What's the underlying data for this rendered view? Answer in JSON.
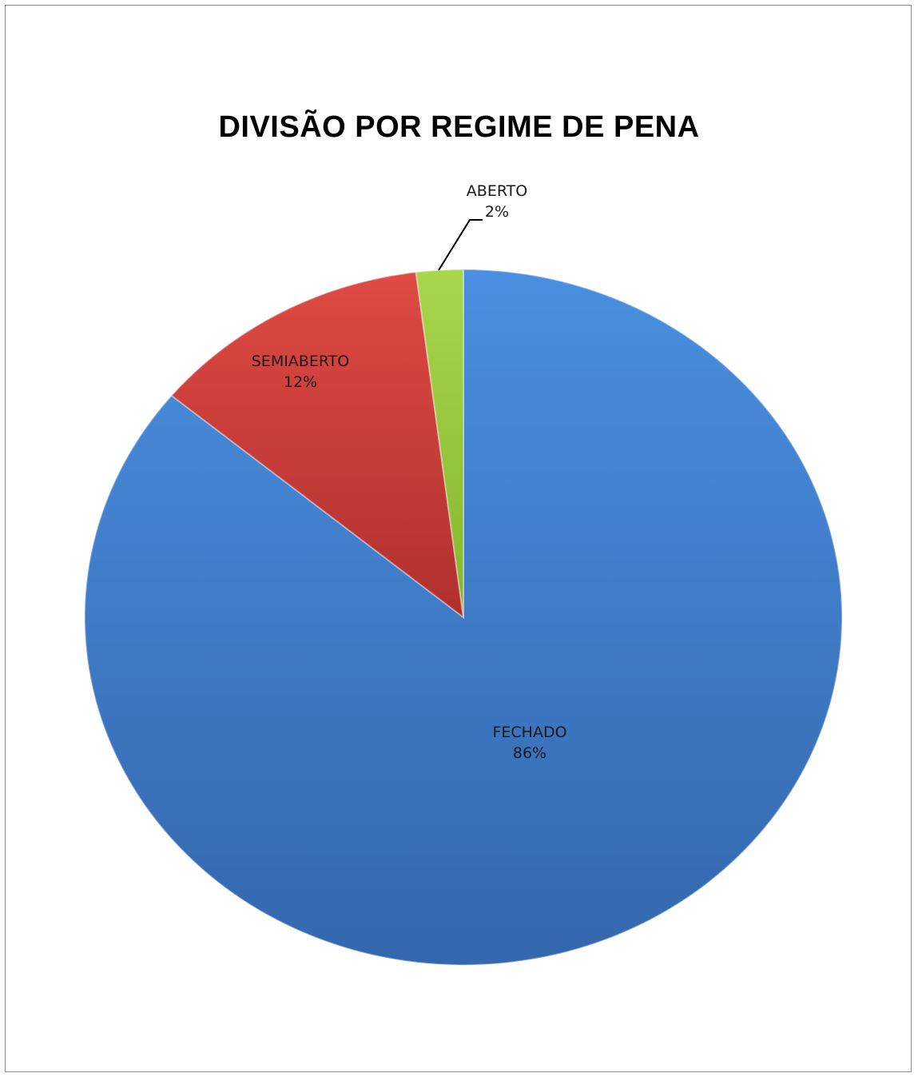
{
  "chart_data": {
    "type": "pie",
    "title": "DIVISÃO POR REGIME DE PENA",
    "slices": [
      {
        "label": "FECHADO",
        "value": 86,
        "value_label": "86%",
        "color": "#4080d0"
      },
      {
        "label": "SEMIABERTO",
        "value": 12,
        "value_label": "12%",
        "color": "#c93a36"
      },
      {
        "label": "ABERTO",
        "value": 2,
        "value_label": "2%",
        "color": "#98c83c"
      }
    ],
    "legend": "none",
    "data_labels": "category and percentage"
  }
}
